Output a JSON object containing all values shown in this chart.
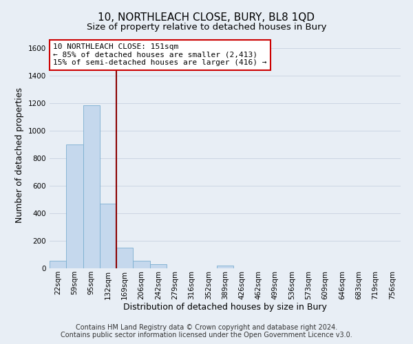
{
  "title": "10, NORTHLEACH CLOSE, BURY, BL8 1QD",
  "subtitle": "Size of property relative to detached houses in Bury",
  "xlabel": "Distribution of detached houses by size in Bury",
  "ylabel": "Number of detached properties",
  "footer_line1": "Contains HM Land Registry data © Crown copyright and database right 2024.",
  "footer_line2": "Contains public sector information licensed under the Open Government Licence v3.0.",
  "bin_labels": [
    "22sqm",
    "59sqm",
    "95sqm",
    "132sqm",
    "169sqm",
    "206sqm",
    "242sqm",
    "279sqm",
    "316sqm",
    "352sqm",
    "389sqm",
    "426sqm",
    "462sqm",
    "499sqm",
    "536sqm",
    "573sqm",
    "609sqm",
    "646sqm",
    "683sqm",
    "719sqm",
    "756sqm"
  ],
  "bar_values": [
    55,
    900,
    1185,
    470,
    150,
    55,
    28,
    0,
    0,
    0,
    18,
    0,
    0,
    0,
    0,
    0,
    0,
    0,
    0,
    0,
    0
  ],
  "bar_color": "#c5d8ed",
  "bar_edge_color": "#7aaed0",
  "vline_x_index": 3,
  "vline_color": "#8b0000",
  "annotation_title": "10 NORTHLEACH CLOSE: 151sqm",
  "annotation_line1": "← 85% of detached houses are smaller (2,413)",
  "annotation_line2": "15% of semi-detached houses are larger (416) →",
  "annotation_box_facecolor": "#ffffff",
  "annotation_box_edgecolor": "#cc0000",
  "ylim": [
    0,
    1650
  ],
  "yticks": [
    0,
    200,
    400,
    600,
    800,
    1000,
    1200,
    1400,
    1600
  ],
  "grid_color": "#ccd5e3",
  "background_color": "#e8eef5",
  "title_fontsize": 11,
  "subtitle_fontsize": 9.5,
  "axis_label_fontsize": 9,
  "tick_fontsize": 7.5,
  "annotation_fontsize": 8,
  "footer_fontsize": 7
}
